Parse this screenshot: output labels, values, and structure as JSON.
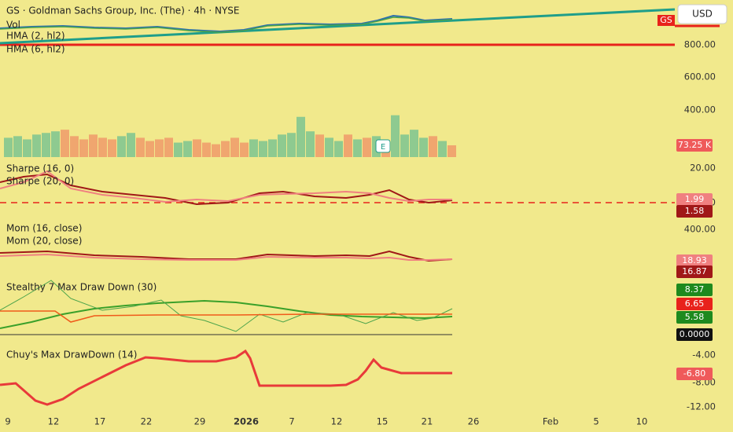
{
  "header": {
    "title": "GS · Goldman Sachs Group, Inc. (The) · 4h · NYSE",
    "currency": "USD",
    "symbol_badge": "GS"
  },
  "panes": [
    {
      "labels": [
        "Vol",
        "HMA (2, hl2)",
        "HMA (6, hl2)"
      ],
      "axis": [
        "800.00",
        "600.00",
        "400.00"
      ],
      "badges": [
        "73.25 K"
      ]
    },
    {
      "labels": [
        "Sharpe (16, 0)",
        "Sharpe (20, 0)"
      ],
      "axis": [
        "20.00",
        "0"
      ],
      "badges": [
        "1.99",
        "1.58"
      ]
    },
    {
      "labels": [
        "Mom (16, close)",
        "Mom (20, close)"
      ],
      "axis": [
        "400.00"
      ],
      "badges": [
        "18.93",
        "16.87"
      ]
    },
    {
      "labels": [
        "Stealthy 7 Max Draw Down (30)"
      ],
      "axis": [],
      "badges": [
        "8.37",
        "6.65",
        "5.58",
        "0.0000"
      ]
    },
    {
      "labels": [
        "Chuy's Max DrawDown (14)"
      ],
      "axis": [
        "-4.00",
        "-8.00",
        "-12.00"
      ],
      "badges": [
        "-6.80"
      ]
    }
  ],
  "x_labels": [
    "9",
    "12",
    "17",
    "22",
    "29",
    "2026",
    "7",
    "12",
    "15",
    "21",
    "26",
    "Feb",
    "5",
    "10"
  ],
  "event_marker": "E",
  "volume": {
    "ylim": [
      0,
      1000
    ],
    "values": [
      120,
      130,
      110,
      140,
      150,
      160,
      170,
      130,
      110,
      140,
      120,
      110,
      130,
      150,
      120,
      100,
      110,
      120,
      90,
      100,
      110,
      90,
      80,
      100,
      120,
      90,
      110,
      100,
      110,
      140,
      150,
      250,
      160,
      140,
      120,
      100,
      140,
      110,
      120,
      130,
      100,
      260,
      140,
      170,
      120,
      130,
      100,
      73.25
    ],
    "up": [
      true,
      true,
      true,
      true,
      true,
      true,
      false,
      false,
      false,
      false,
      false,
      false,
      true,
      true,
      false,
      false,
      false,
      false,
      true,
      true,
      false,
      false,
      false,
      false,
      false,
      false,
      true,
      true,
      true,
      true,
      true,
      true,
      true,
      false,
      true,
      true,
      false,
      true,
      false,
      true,
      false,
      true,
      true,
      true,
      true,
      false,
      true,
      false
    ]
  }
}
